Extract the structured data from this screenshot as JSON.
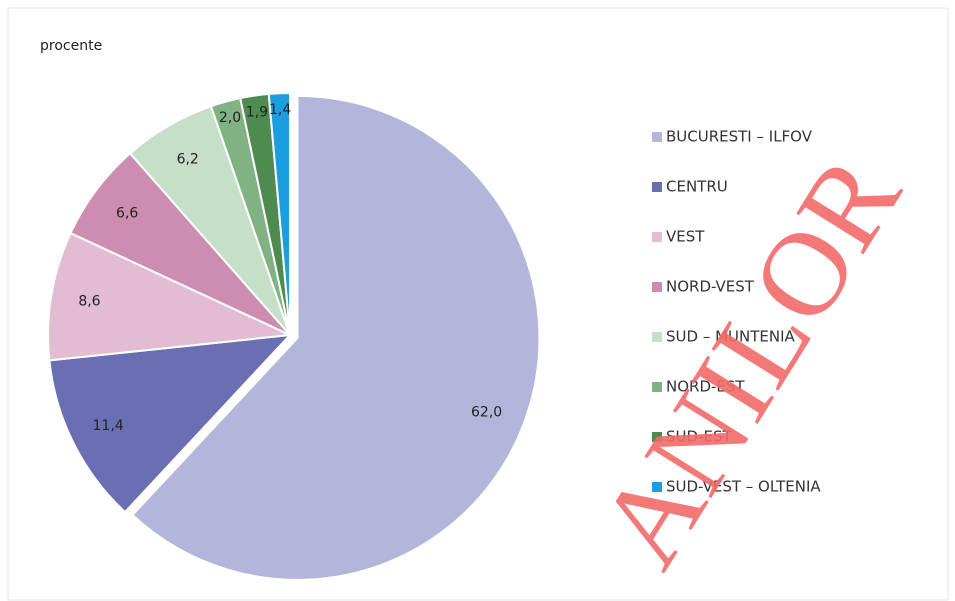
{
  "chart_data": {
    "type": "pie",
    "subtitle": "procente",
    "categories": [
      "BUCURESTI – ILFOV",
      "CENTRU",
      "VEST",
      "NORD-VEST",
      "SUD – MUNTENIA",
      "NORD-EST",
      "SUD-EST",
      "SUD-VEST – OLTENIA"
    ],
    "values": [
      62.0,
      11.4,
      8.6,
      6.6,
      6.2,
      2.0,
      1.9,
      1.4
    ],
    "value_labels": [
      "62,0",
      "11,4",
      "8,6",
      "6,6",
      "6,2",
      "2,0",
      "1,9",
      "1,4"
    ],
    "colors": [
      "#b3b6da",
      "#6a6fb3",
      "#e2bcd3",
      "#cc8db0",
      "#c6dfc8",
      "#80b283",
      "#4e8b50",
      "#1b9ee0"
    ],
    "legend": "right",
    "watermark": "ANILOR"
  }
}
